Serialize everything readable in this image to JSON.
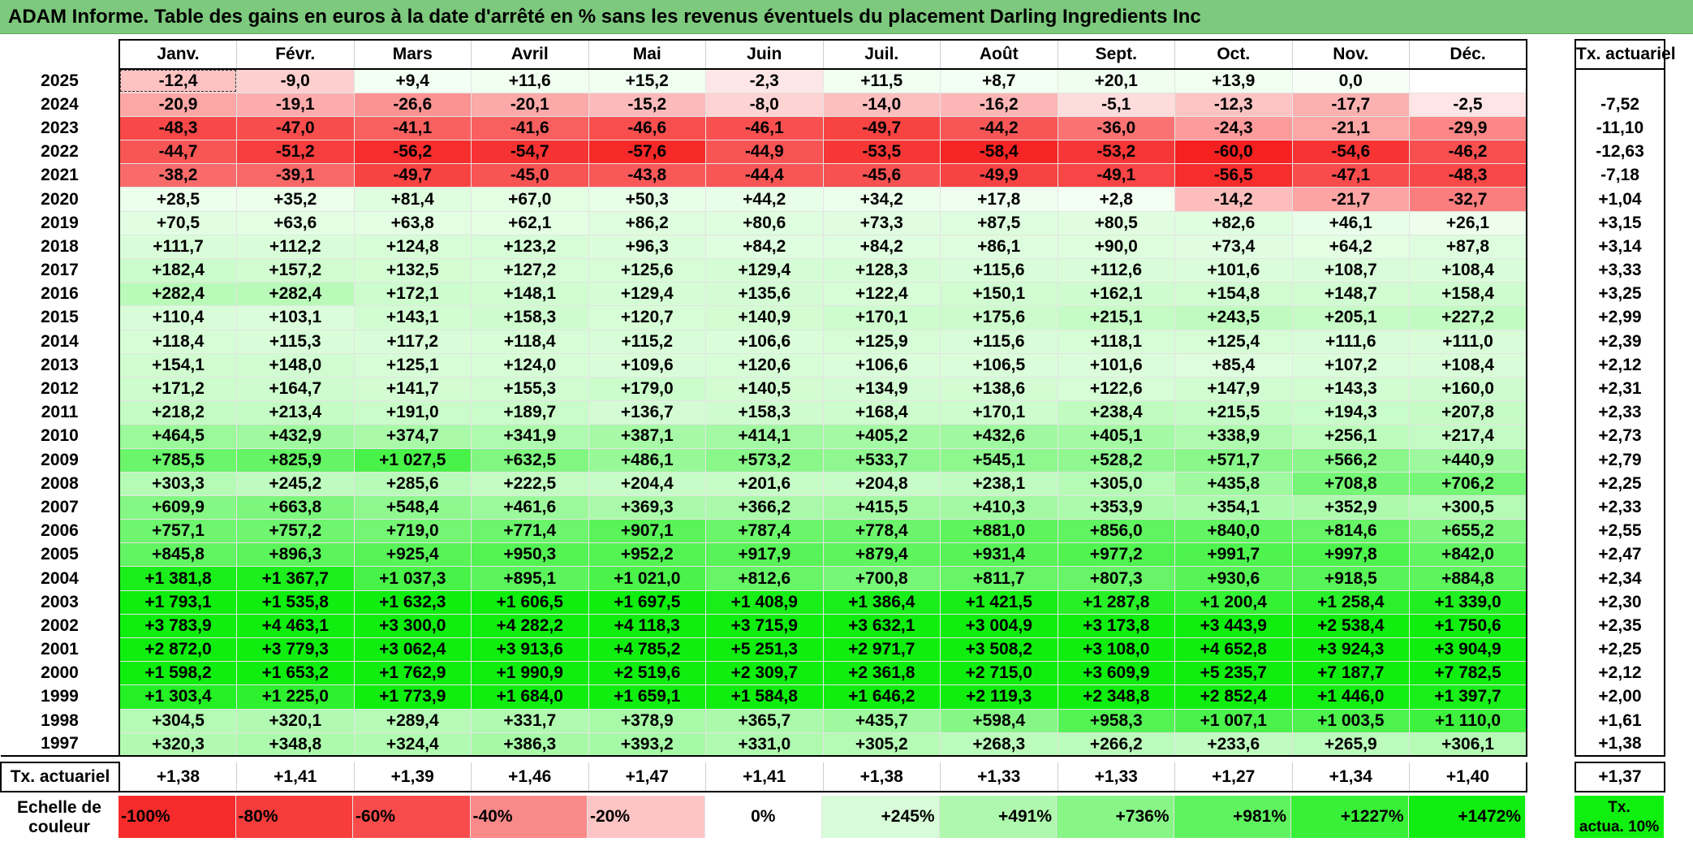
{
  "title": "ADAM Informe. Table des gains en euros à la date d'arrêté en % sans les revenus éventuels du placement Darling Ingredients Inc",
  "months": [
    "Janv.",
    "Févr.",
    "Mars",
    "Avril",
    "Mai",
    "Juin",
    "Juil.",
    "Août",
    "Sept.",
    "Oct.",
    "Nov.",
    "Déc."
  ],
  "tx_header": "Tx. actuariel",
  "rows": [
    {
      "year": "2025",
      "values": [
        "-12,4",
        "-9,0",
        "+9,4",
        "+11,6",
        "+15,2",
        "-2,3",
        "+11,5",
        "+8,7",
        "+20,1",
        "+13,9",
        "0,0",
        ""
      ],
      "tx": ""
    },
    {
      "year": "2024",
      "values": [
        "-20,9",
        "-19,1",
        "-26,6",
        "-20,1",
        "-15,2",
        "-8,0",
        "-14,0",
        "-16,2",
        "-5,1",
        "-12,3",
        "-17,7",
        "-2,5"
      ],
      "tx": "-7,52"
    },
    {
      "year": "2023",
      "values": [
        "-48,3",
        "-47,0",
        "-41,1",
        "-41,6",
        "-46,6",
        "-46,1",
        "-49,7",
        "-44,2",
        "-36,0",
        "-24,3",
        "-21,1",
        "-29,9"
      ],
      "tx": "-11,10"
    },
    {
      "year": "2022",
      "values": [
        "-44,7",
        "-51,2",
        "-56,2",
        "-54,7",
        "-57,6",
        "-44,9",
        "-53,5",
        "-58,4",
        "-53,2",
        "-60,0",
        "-54,6",
        "-46,2"
      ],
      "tx": "-12,63"
    },
    {
      "year": "2021",
      "values": [
        "-38,2",
        "-39,1",
        "-49,7",
        "-45,0",
        "-43,8",
        "-44,4",
        "-45,6",
        "-49,9",
        "-49,1",
        "-56,5",
        "-47,1",
        "-48,3"
      ],
      "tx": "-7,18"
    },
    {
      "year": "2020",
      "values": [
        "+28,5",
        "+35,2",
        "+81,4",
        "+67,0",
        "+50,3",
        "+44,2",
        "+34,2",
        "+17,8",
        "+2,8",
        "-14,2",
        "-21,7",
        "-32,7"
      ],
      "tx": "+1,04"
    },
    {
      "year": "2019",
      "values": [
        "+70,5",
        "+63,6",
        "+63,8",
        "+62,1",
        "+86,2",
        "+80,6",
        "+73,3",
        "+87,5",
        "+80,5",
        "+82,6",
        "+46,1",
        "+26,1"
      ],
      "tx": "+3,15"
    },
    {
      "year": "2018",
      "values": [
        "+111,7",
        "+112,2",
        "+124,8",
        "+123,2",
        "+96,3",
        "+84,2",
        "+84,2",
        "+86,1",
        "+90,0",
        "+73,4",
        "+64,2",
        "+87,8"
      ],
      "tx": "+3,14"
    },
    {
      "year": "2017",
      "values": [
        "+182,4",
        "+157,2",
        "+132,5",
        "+127,2",
        "+125,6",
        "+129,4",
        "+128,3",
        "+115,6",
        "+112,6",
        "+101,6",
        "+108,7",
        "+108,4"
      ],
      "tx": "+3,33"
    },
    {
      "year": "2016",
      "values": [
        "+282,4",
        "+282,4",
        "+172,1",
        "+148,1",
        "+129,4",
        "+135,6",
        "+122,4",
        "+150,1",
        "+162,1",
        "+154,8",
        "+148,7",
        "+158,4"
      ],
      "tx": "+3,25"
    },
    {
      "year": "2015",
      "values": [
        "+110,4",
        "+103,1",
        "+143,1",
        "+158,3",
        "+120,7",
        "+140,9",
        "+170,1",
        "+175,6",
        "+215,1",
        "+243,5",
        "+205,1",
        "+227,2"
      ],
      "tx": "+2,99"
    },
    {
      "year": "2014",
      "values": [
        "+118,4",
        "+115,3",
        "+117,2",
        "+118,4",
        "+115,2",
        "+106,6",
        "+125,9",
        "+115,6",
        "+118,1",
        "+125,4",
        "+111,6",
        "+111,0"
      ],
      "tx": "+2,39"
    },
    {
      "year": "2013",
      "values": [
        "+154,1",
        "+148,0",
        "+125,1",
        "+124,0",
        "+109,6",
        "+120,6",
        "+106,6",
        "+106,5",
        "+101,6",
        "+85,4",
        "+107,2",
        "+108,4"
      ],
      "tx": "+2,12"
    },
    {
      "year": "2012",
      "values": [
        "+171,2",
        "+164,7",
        "+141,7",
        "+155,3",
        "+179,0",
        "+140,5",
        "+134,9",
        "+138,6",
        "+122,6",
        "+147,9",
        "+143,3",
        "+160,0"
      ],
      "tx": "+2,31"
    },
    {
      "year": "2011",
      "values": [
        "+218,2",
        "+213,4",
        "+191,0",
        "+189,7",
        "+136,7",
        "+158,3",
        "+168,4",
        "+170,1",
        "+238,4",
        "+215,5",
        "+194,3",
        "+207,8"
      ],
      "tx": "+2,33"
    },
    {
      "year": "2010",
      "values": [
        "+464,5",
        "+432,9",
        "+374,7",
        "+341,9",
        "+387,1",
        "+414,1",
        "+405,2",
        "+432,6",
        "+405,1",
        "+338,9",
        "+256,1",
        "+217,4"
      ],
      "tx": "+2,73"
    },
    {
      "year": "2009",
      "values": [
        "+785,5",
        "+825,9",
        "+1 027,5",
        "+632,5",
        "+486,1",
        "+573,2",
        "+533,7",
        "+545,1",
        "+528,2",
        "+571,7",
        "+566,2",
        "+440,9"
      ],
      "tx": "+2,79"
    },
    {
      "year": "2008",
      "values": [
        "+303,3",
        "+245,2",
        "+285,6",
        "+222,5",
        "+204,4",
        "+201,6",
        "+204,8",
        "+238,1",
        "+305,0",
        "+435,8",
        "+708,8",
        "+706,2"
      ],
      "tx": "+2,25"
    },
    {
      "year": "2007",
      "values": [
        "+609,9",
        "+663,8",
        "+548,4",
        "+461,6",
        "+369,3",
        "+366,2",
        "+415,5",
        "+410,3",
        "+353,9",
        "+354,1",
        "+352,9",
        "+300,5"
      ],
      "tx": "+2,33"
    },
    {
      "year": "2006",
      "values": [
        "+757,1",
        "+757,2",
        "+719,0",
        "+771,4",
        "+907,1",
        "+787,4",
        "+778,4",
        "+881,0",
        "+856,0",
        "+840,0",
        "+814,6",
        "+655,2"
      ],
      "tx": "+2,55"
    },
    {
      "year": "2005",
      "values": [
        "+845,8",
        "+896,3",
        "+925,4",
        "+950,3",
        "+952,2",
        "+917,9",
        "+879,4",
        "+931,4",
        "+977,2",
        "+991,7",
        "+997,8",
        "+842,0"
      ],
      "tx": "+2,47"
    },
    {
      "year": "2004",
      "values": [
        "+1 381,8",
        "+1 367,7",
        "+1 037,3",
        "+895,1",
        "+1 021,0",
        "+812,6",
        "+700,8",
        "+811,7",
        "+807,3",
        "+930,6",
        "+918,5",
        "+884,8"
      ],
      "tx": "+2,34"
    },
    {
      "year": "2003",
      "values": [
        "+1 793,1",
        "+1 535,8",
        "+1 632,3",
        "+1 606,5",
        "+1 697,5",
        "+1 408,9",
        "+1 386,4",
        "+1 421,5",
        "+1 287,8",
        "+1 200,4",
        "+1 258,4",
        "+1 339,0"
      ],
      "tx": "+2,30"
    },
    {
      "year": "2002",
      "values": [
        "+3 783,9",
        "+4 463,1",
        "+3 300,0",
        "+4 282,2",
        "+4 118,3",
        "+3 715,9",
        "+3 632,1",
        "+3 004,9",
        "+3 173,8",
        "+3 443,9",
        "+2 538,4",
        "+1 750,6"
      ],
      "tx": "+2,35"
    },
    {
      "year": "2001",
      "values": [
        "+2 872,0",
        "+3 779,3",
        "+3 062,4",
        "+3 913,6",
        "+4 785,2",
        "+5 251,3",
        "+2 971,7",
        "+3 508,2",
        "+3 108,0",
        "+4 652,8",
        "+3 924,3",
        "+3 904,9"
      ],
      "tx": "+2,25"
    },
    {
      "year": "2000",
      "values": [
        "+1 598,2",
        "+1 653,2",
        "+1 762,9",
        "+1 990,9",
        "+2 519,6",
        "+2 309,7",
        "+2 361,8",
        "+2 715,0",
        "+3 609,9",
        "+5 235,7",
        "+7 187,7",
        "+7 782,5"
      ],
      "tx": "+2,12"
    },
    {
      "year": "1999",
      "values": [
        "+1 303,4",
        "+1 225,0",
        "+1 773,9",
        "+1 684,0",
        "+1 659,1",
        "+1 584,8",
        "+1 646,2",
        "+2 119,3",
        "+2 348,8",
        "+2 852,4",
        "+1 446,0",
        "+1 397,7"
      ],
      "tx": "+2,00"
    },
    {
      "year": "1998",
      "values": [
        "+304,5",
        "+320,1",
        "+289,4",
        "+331,7",
        "+378,9",
        "+365,7",
        "+435,7",
        "+598,4",
        "+958,3",
        "+1 007,1",
        "+1 003,5",
        "+1 110,0"
      ],
      "tx": "+1,61"
    },
    {
      "year": "1997",
      "values": [
        "+320,3",
        "+348,8",
        "+324,4",
        "+386,3",
        "+393,2",
        "+331,0",
        "+305,2",
        "+268,3",
        "+266,2",
        "+233,6",
        "+265,9",
        "+306,1"
      ],
      "tx": "+1,38"
    }
  ],
  "tx_row": {
    "label": "Tx. actuariel",
    "values": [
      "+1,38",
      "+1,41",
      "+1,39",
      "+1,46",
      "+1,47",
      "+1,41",
      "+1,38",
      "+1,33",
      "+1,33",
      "+1,27",
      "+1,34",
      "+1,40"
    ],
    "total": "+1,37"
  },
  "legend": {
    "label_line1": "Echelle de",
    "label_line2": "couleur",
    "steps": [
      {
        "label": "-100%",
        "color": "#f62b2b",
        "kind": "neg"
      },
      {
        "label": "-80%",
        "color": "#f73c3c",
        "kind": "neg"
      },
      {
        "label": "-60%",
        "color": "#f84c4c",
        "kind": "neg"
      },
      {
        "label": "-40%",
        "color": "#fa8a8a",
        "kind": "neg"
      },
      {
        "label": "-20%",
        "color": "#fcc4c4",
        "kind": "neg"
      },
      {
        "label": "0%",
        "color": "#ffffff",
        "kind": "zero"
      },
      {
        "label": "+245%",
        "color": "#d7fcd7",
        "kind": "pos"
      },
      {
        "label": "+491%",
        "color": "#aff9af",
        "kind": "pos"
      },
      {
        "label": "+736%",
        "color": "#87f687",
        "kind": "pos"
      },
      {
        "label": "+981%",
        "color": "#5ff35f",
        "kind": "pos"
      },
      {
        "label": "+1227%",
        "color": "#37f037",
        "kind": "pos"
      },
      {
        "label": "+1472%",
        "color": "#10ed10",
        "kind": "pos"
      }
    ],
    "key_line1": "Tx.",
    "key_line2": "actua. 10%",
    "key_color": "#10f010"
  },
  "colors": {
    "title_bg": "#7dc97d",
    "neg_max": "#f62020",
    "pos_max": "#10ee10",
    "neutral": "#ffffff"
  }
}
